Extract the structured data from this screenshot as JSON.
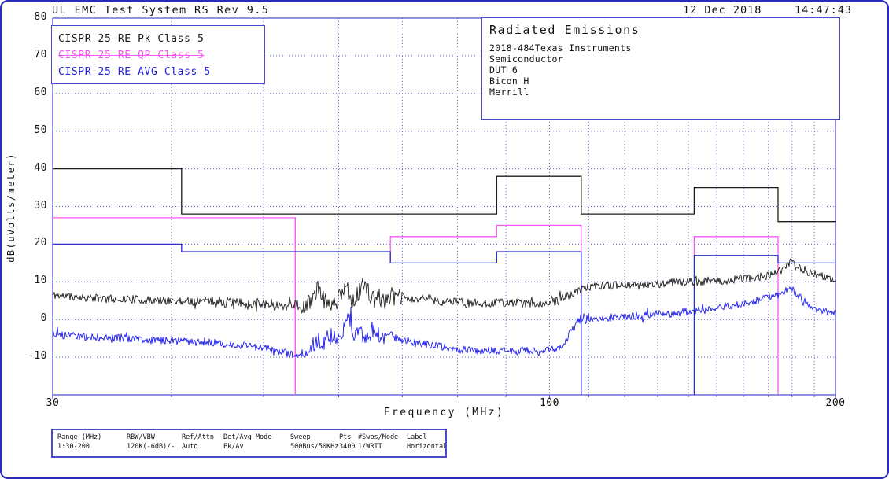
{
  "header": {
    "title": "UL EMC Test System RS Rev 9.5",
    "date": "12 Dec 2018",
    "time": "14:47:43"
  },
  "legend": [
    {
      "label": "CISPR 25 RE Pk Class 5",
      "color": "#1c1c1c",
      "strike": false
    },
    {
      "label": "CISPR 25 RE QP Class 5",
      "color": "#f858f8",
      "strike": true
    },
    {
      "label": "CISPR 25 RE AVG Class 5",
      "color": "#2222e0",
      "strike": false
    }
  ],
  "info_box": {
    "title": "Radiated Emissions",
    "lines": [
      "2018-484Texas Instruments",
      "Semiconductor",
      "DUT 6",
      "Bicon H",
      "Merrill"
    ]
  },
  "chart_data": {
    "type": "line",
    "title": "Radiated Emissions",
    "xlabel": "Frequency (MHz)",
    "ylabel": "dB(uVolts/meter)",
    "x_scale": "log",
    "xlim": [
      30,
      200
    ],
    "ylim": [
      -10,
      80
    ],
    "x_ticks": [
      30,
      100,
      200
    ],
    "y_ticks": [
      80,
      70,
      60,
      50,
      40,
      30,
      20,
      10,
      0,
      -10
    ],
    "x_gridlines": [
      40,
      50,
      60,
      70,
      80,
      90,
      100,
      110,
      120,
      130,
      140,
      150,
      160,
      170,
      180,
      190
    ],
    "y_gridlines": [
      70,
      60,
      50,
      40,
      30,
      20,
      10,
      0,
      -10
    ],
    "grid_color": "#5f5fd8",
    "frame_color": "#4a4ad0",
    "limits": [
      {
        "name": "CISPR 25 RE Pk Class 5 limit",
        "color": "#1c1c1c",
        "segments": [
          {
            "points": [
              [
                30,
                40
              ],
              [
                41,
                40
              ],
              [
                41,
                28
              ],
              [
                88,
                28
              ],
              [
                88,
                38
              ],
              [
                108,
                38
              ],
              [
                108,
                28
              ],
              [
                142,
                28
              ],
              [
                142,
                35
              ],
              [
                174,
                35
              ],
              [
                174,
                26
              ],
              [
                200,
                26
              ]
            ]
          }
        ]
      },
      {
        "name": "CISPR 25 RE QP Class 5 limit",
        "color": "#f858f8",
        "segments": [
          {
            "points": [
              [
                30,
                27
              ],
              [
                54,
                27
              ],
              [
                54,
                -20
              ]
            ]
          },
          {
            "points": [
              [
                68,
                15
              ],
              [
                68,
                22
              ],
              [
                88,
                22
              ],
              [
                88,
                25
              ],
              [
                108,
                25
              ],
              [
                108,
                18
              ]
            ]
          },
          {
            "points": [
              [
                142,
                17
              ],
              [
                142,
                22
              ],
              [
                174,
                22
              ],
              [
                174,
                -20
              ]
            ]
          }
        ]
      },
      {
        "name": "CISPR 25 RE AVG Class 5 limit",
        "color": "#2b2bd0",
        "segments": [
          {
            "points": [
              [
                30,
                20
              ],
              [
                41,
                20
              ],
              [
                41,
                18
              ],
              [
                68,
                18
              ],
              [
                68,
                15
              ],
              [
                88,
                15
              ],
              [
                88,
                18
              ],
              [
                108,
                18
              ],
              [
                108,
                -20
              ]
            ]
          },
          {
            "points": [
              [
                142,
                -20
              ],
              [
                142,
                17
              ],
              [
                174,
                17
              ],
              [
                174,
                15
              ],
              [
                200,
                15
              ]
            ]
          }
        ]
      }
    ],
    "series": [
      {
        "name": "Pk measured trace",
        "color": "#1c1c1c",
        "noise": 1.1,
        "noise_regions": [
          [
            44,
            55,
            1.5
          ],
          [
            55,
            70,
            2.3
          ]
        ],
        "anchors": [
          [
            30,
            6.5
          ],
          [
            32,
            6
          ],
          [
            34,
            5.5
          ],
          [
            36,
            5.5
          ],
          [
            38,
            5
          ],
          [
            40,
            5
          ],
          [
            42,
            4.8
          ],
          [
            44,
            5
          ],
          [
            46,
            4.5
          ],
          [
            48,
            4
          ],
          [
            50,
            4.5
          ],
          [
            52,
            3.5
          ],
          [
            54,
            4.2
          ],
          [
            55,
            2.5
          ],
          [
            56,
            5
          ],
          [
            57,
            8
          ],
          [
            58,
            5
          ],
          [
            59,
            4
          ],
          [
            60,
            5.5
          ],
          [
            61,
            9.5
          ],
          [
            62,
            5
          ],
          [
            63,
            7
          ],
          [
            64,
            10
          ],
          [
            65,
            5
          ],
          [
            66,
            6
          ],
          [
            67,
            5
          ],
          [
            68,
            6.5
          ],
          [
            69,
            5.5
          ],
          [
            70,
            6
          ],
          [
            72,
            5
          ],
          [
            74,
            6
          ],
          [
            76,
            5
          ],
          [
            78,
            4.5
          ],
          [
            80,
            5
          ],
          [
            82,
            4.2
          ],
          [
            84,
            4.5
          ],
          [
            86,
            4
          ],
          [
            88,
            5
          ],
          [
            90,
            4.2
          ],
          [
            92,
            4.6
          ],
          [
            94,
            4
          ],
          [
            96,
            4.5
          ],
          [
            98,
            4
          ],
          [
            100,
            4.5
          ],
          [
            102,
            5
          ],
          [
            104,
            6
          ],
          [
            106,
            7
          ],
          [
            108,
            8
          ],
          [
            110,
            8.5
          ],
          [
            113,
            9
          ],
          [
            116,
            9
          ],
          [
            120,
            9.5
          ],
          [
            124,
            9
          ],
          [
            128,
            9.5
          ],
          [
            132,
            9.5
          ],
          [
            136,
            10
          ],
          [
            140,
            10
          ],
          [
            144,
            10
          ],
          [
            148,
            10.5
          ],
          [
            152,
            10
          ],
          [
            156,
            10.5
          ],
          [
            160,
            11
          ],
          [
            164,
            11
          ],
          [
            168,
            11.5
          ],
          [
            172,
            12
          ],
          [
            175,
            13
          ],
          [
            178,
            14.5
          ],
          [
            180,
            15.5
          ],
          [
            182,
            14.5
          ],
          [
            184,
            13.5
          ],
          [
            186,
            13
          ],
          [
            188,
            12.5
          ],
          [
            190,
            12
          ],
          [
            193,
            11.5
          ],
          [
            196,
            11
          ],
          [
            200,
            10.5
          ]
        ]
      },
      {
        "name": "AVG measured trace",
        "color": "#1a1aee",
        "noise": 1.0,
        "noise_regions": [
          [
            56,
            67,
            2.4
          ],
          [
            103,
            110,
            1.4
          ]
        ],
        "anchors": [
          [
            30,
            -4
          ],
          [
            32,
            -4.5
          ],
          [
            34,
            -5
          ],
          [
            36,
            -5
          ],
          [
            38,
            -5.5
          ],
          [
            40,
            -5.5
          ],
          [
            42,
            -6
          ],
          [
            44,
            -6
          ],
          [
            46,
            -6.5
          ],
          [
            48,
            -7
          ],
          [
            50,
            -7.5
          ],
          [
            52,
            -8.5
          ],
          [
            54,
            -9.5
          ],
          [
            55,
            -10
          ],
          [
            56,
            -8
          ],
          [
            57,
            -5
          ],
          [
            58,
            -6
          ],
          [
            59,
            -4
          ],
          [
            60,
            -5.5
          ],
          [
            61,
            -2
          ],
          [
            61.5,
            1.5
          ],
          [
            62,
            -4
          ],
          [
            63,
            -2.5
          ],
          [
            64,
            -5
          ],
          [
            65,
            -3
          ],
          [
            66,
            -4
          ],
          [
            67,
            -4.5
          ],
          [
            68,
            -4
          ],
          [
            69,
            -5
          ],
          [
            70,
            -5.5
          ],
          [
            72,
            -6
          ],
          [
            74,
            -6.5
          ],
          [
            76,
            -7
          ],
          [
            78,
            -7.5
          ],
          [
            80,
            -8
          ],
          [
            82,
            -8
          ],
          [
            84,
            -8.5
          ],
          [
            86,
            -8
          ],
          [
            88,
            -8.5
          ],
          [
            90,
            -8
          ],
          [
            92,
            -8.5
          ],
          [
            94,
            -8
          ],
          [
            96,
            -8.5
          ],
          [
            98,
            -8
          ],
          [
            100,
            -8
          ],
          [
            102,
            -7.5
          ],
          [
            104,
            -6
          ],
          [
            105,
            -4
          ],
          [
            106,
            -2
          ],
          [
            107,
            -0.5
          ],
          [
            108,
            0.5
          ],
          [
            109,
            0
          ],
          [
            110,
            0.5
          ],
          [
            112,
            0
          ],
          [
            114,
            0.5
          ],
          [
            116,
            0.5
          ],
          [
            118,
            1
          ],
          [
            120,
            0.5
          ],
          [
            123,
            1
          ],
          [
            126,
            1
          ],
          [
            129,
            1.5
          ],
          [
            132,
            1.5
          ],
          [
            135,
            1.5
          ],
          [
            138,
            2
          ],
          [
            141,
            2
          ],
          [
            144,
            2.5
          ],
          [
            147,
            2.5
          ],
          [
            150,
            3
          ],
          [
            153,
            3.5
          ],
          [
            156,
            3.5
          ],
          [
            159,
            4
          ],
          [
            162,
            4.5
          ],
          [
            165,
            5
          ],
          [
            168,
            5.5
          ],
          [
            171,
            6
          ],
          [
            174,
            6.5
          ],
          [
            177,
            7.5
          ],
          [
            180,
            8
          ],
          [
            182,
            7
          ],
          [
            184,
            5.5
          ],
          [
            186,
            4.5
          ],
          [
            188,
            3.5
          ],
          [
            190,
            3
          ],
          [
            193,
            2.5
          ],
          [
            196,
            2
          ],
          [
            200,
            1.5
          ]
        ]
      }
    ]
  },
  "settings_table": {
    "columns": [
      {
        "header": "Range (MHz)",
        "value": "1:30-200"
      },
      {
        "header": "RBW/VBW",
        "value": "120K(-6dB)/-"
      },
      {
        "header": "Ref/Attn",
        "value": "Auto"
      },
      {
        "header": "Det/Avg Mode",
        "value": "Pk/Av"
      },
      {
        "header": "Sweep",
        "value": "500Bus/50KHz"
      },
      {
        "header": "Pts",
        "value": "3400"
      },
      {
        "header": "#Swps/Mode",
        "value": "1/WRIT"
      },
      {
        "header": "Label",
        "value": "Horizontal"
      }
    ]
  }
}
